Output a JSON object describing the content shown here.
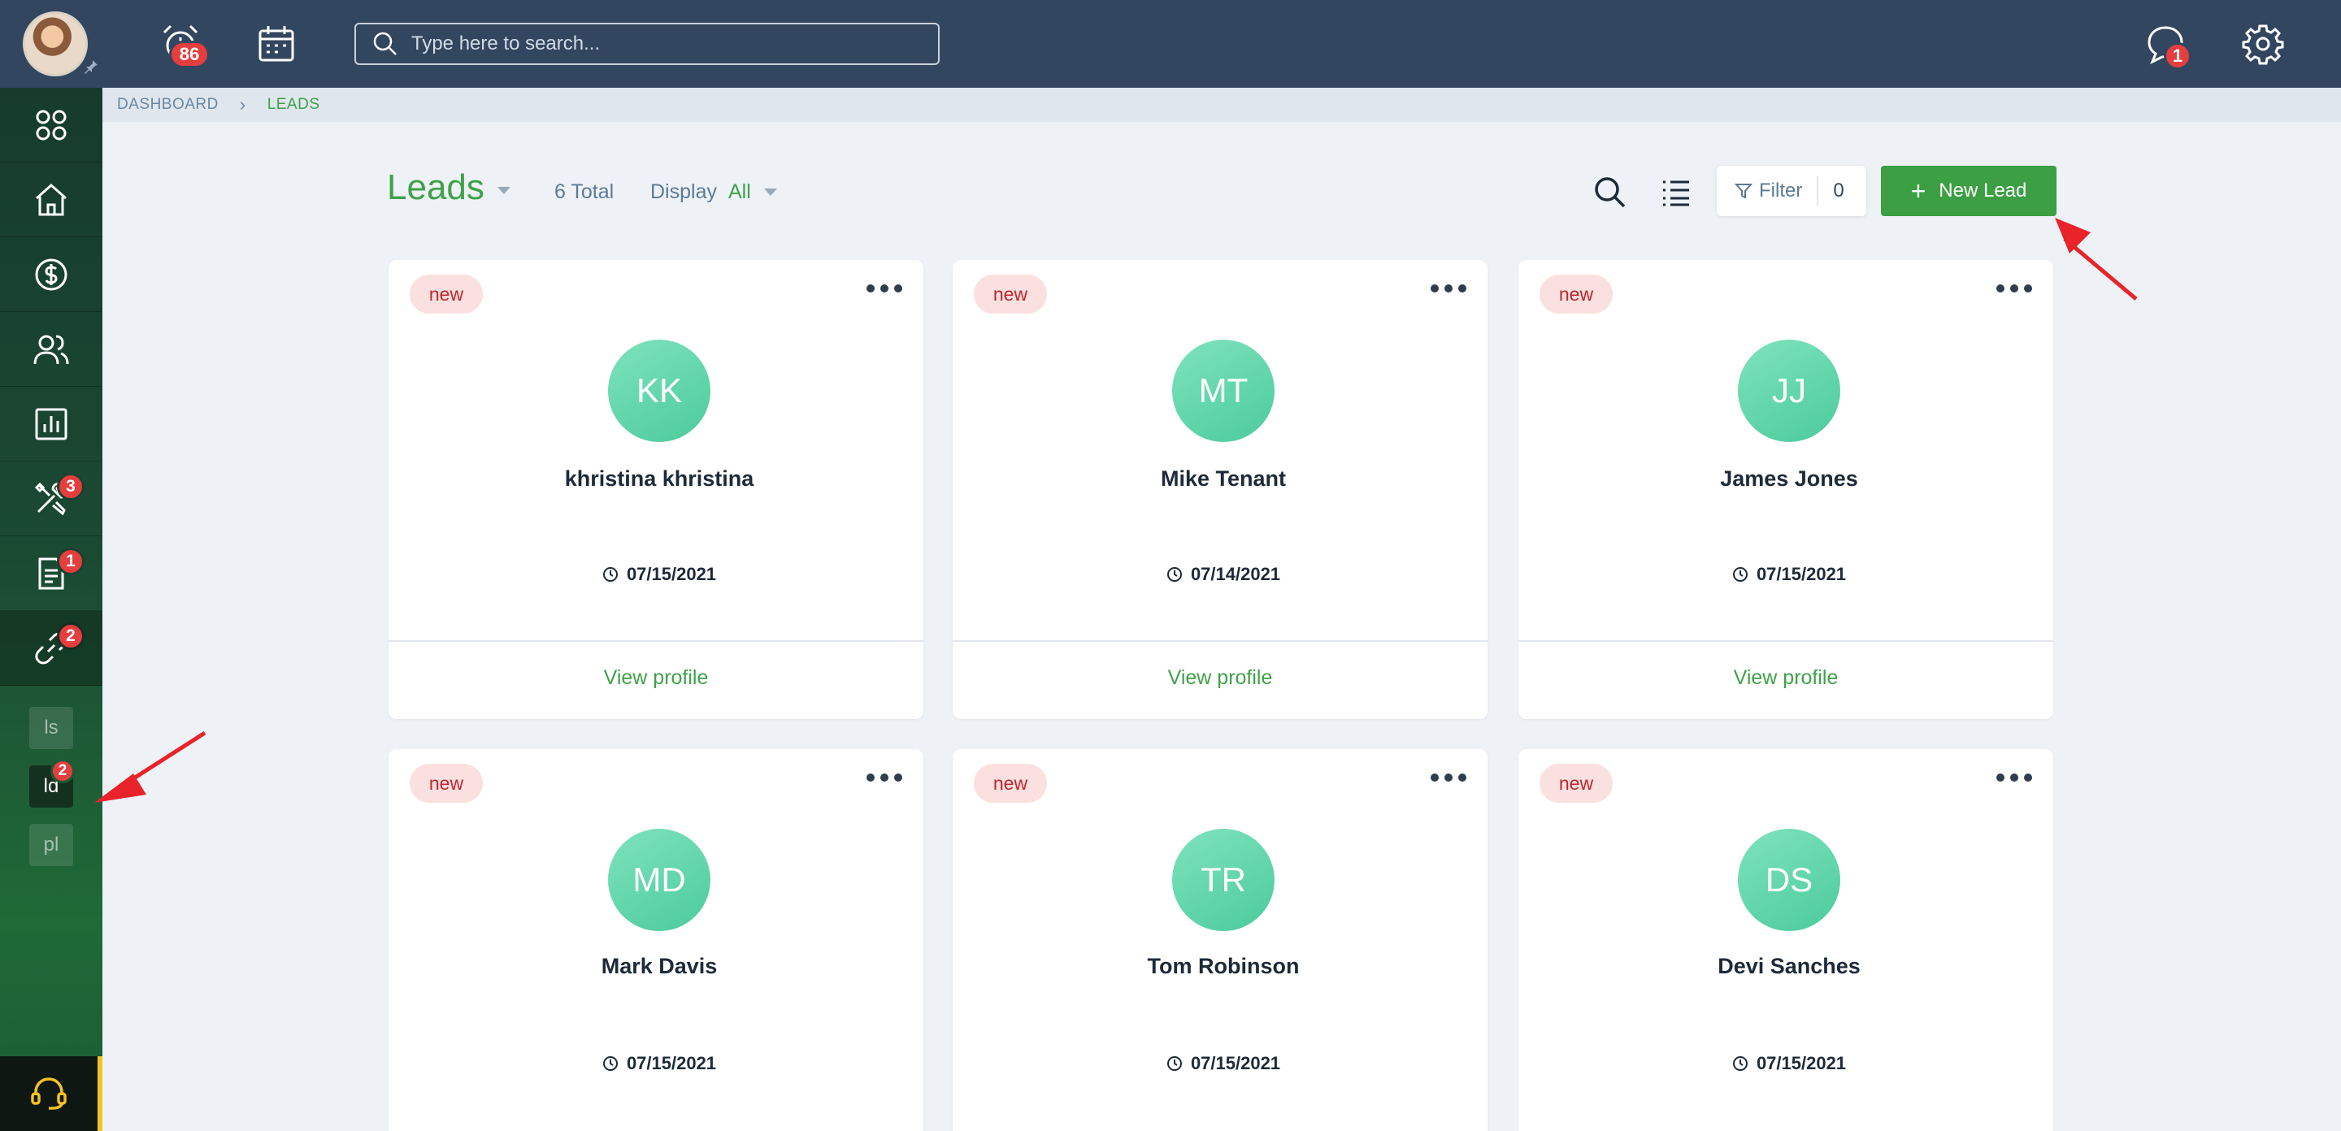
{
  "topbar": {
    "notifications_count": "86",
    "search_placeholder": "Type here to search...",
    "messages_count": "1"
  },
  "sidebar": {
    "items": [
      {
        "icon": "apps-grid-icon",
        "badge": ""
      },
      {
        "icon": "home-icon",
        "badge": ""
      },
      {
        "icon": "dollar-icon",
        "badge": ""
      },
      {
        "icon": "users-icon",
        "badge": ""
      },
      {
        "icon": "bar-chart-icon",
        "badge": ""
      },
      {
        "icon": "tools-icon",
        "badge": "3"
      },
      {
        "icon": "document-icon",
        "badge": "1"
      },
      {
        "icon": "link-icon",
        "badge": "2"
      }
    ],
    "subitems": [
      {
        "label": "ls",
        "badge": ""
      },
      {
        "label": "ld",
        "badge": "2"
      },
      {
        "label": "pl",
        "badge": ""
      }
    ]
  },
  "breadcrumb": {
    "root": "DASHBOARD",
    "current": "LEADS"
  },
  "header": {
    "title": "Leads",
    "total": "6 Total",
    "display_label": "Display",
    "display_value": "All",
    "filter_label": "Filter",
    "filter_count": "0",
    "new_lead_label": "New Lead"
  },
  "leads": [
    {
      "status": "new",
      "initials": "KK",
      "name": "khristina khristina",
      "date": "07/15/2021",
      "action": "View profile"
    },
    {
      "status": "new",
      "initials": "MT",
      "name": "Mike Tenant",
      "date": "07/14/2021",
      "action": "View profile"
    },
    {
      "status": "new",
      "initials": "JJ",
      "name": "James Jones",
      "date": "07/15/2021",
      "action": "View profile"
    },
    {
      "status": "new",
      "initials": "MD",
      "name": "Mark Davis",
      "date": "07/15/2021",
      "action": ""
    },
    {
      "status": "new",
      "initials": "TR",
      "name": "Tom Robinson",
      "date": "07/15/2021",
      "action": ""
    },
    {
      "status": "new",
      "initials": "DS",
      "name": "Devi Sanches",
      "date": "07/15/2021",
      "action": ""
    }
  ],
  "colors": {
    "topbar": "#33465f",
    "accent_green": "#3fa14a",
    "badge_red": "#e53e3e",
    "avatar_green": "#4ccb9c",
    "annotation_red": "#e8232a"
  }
}
